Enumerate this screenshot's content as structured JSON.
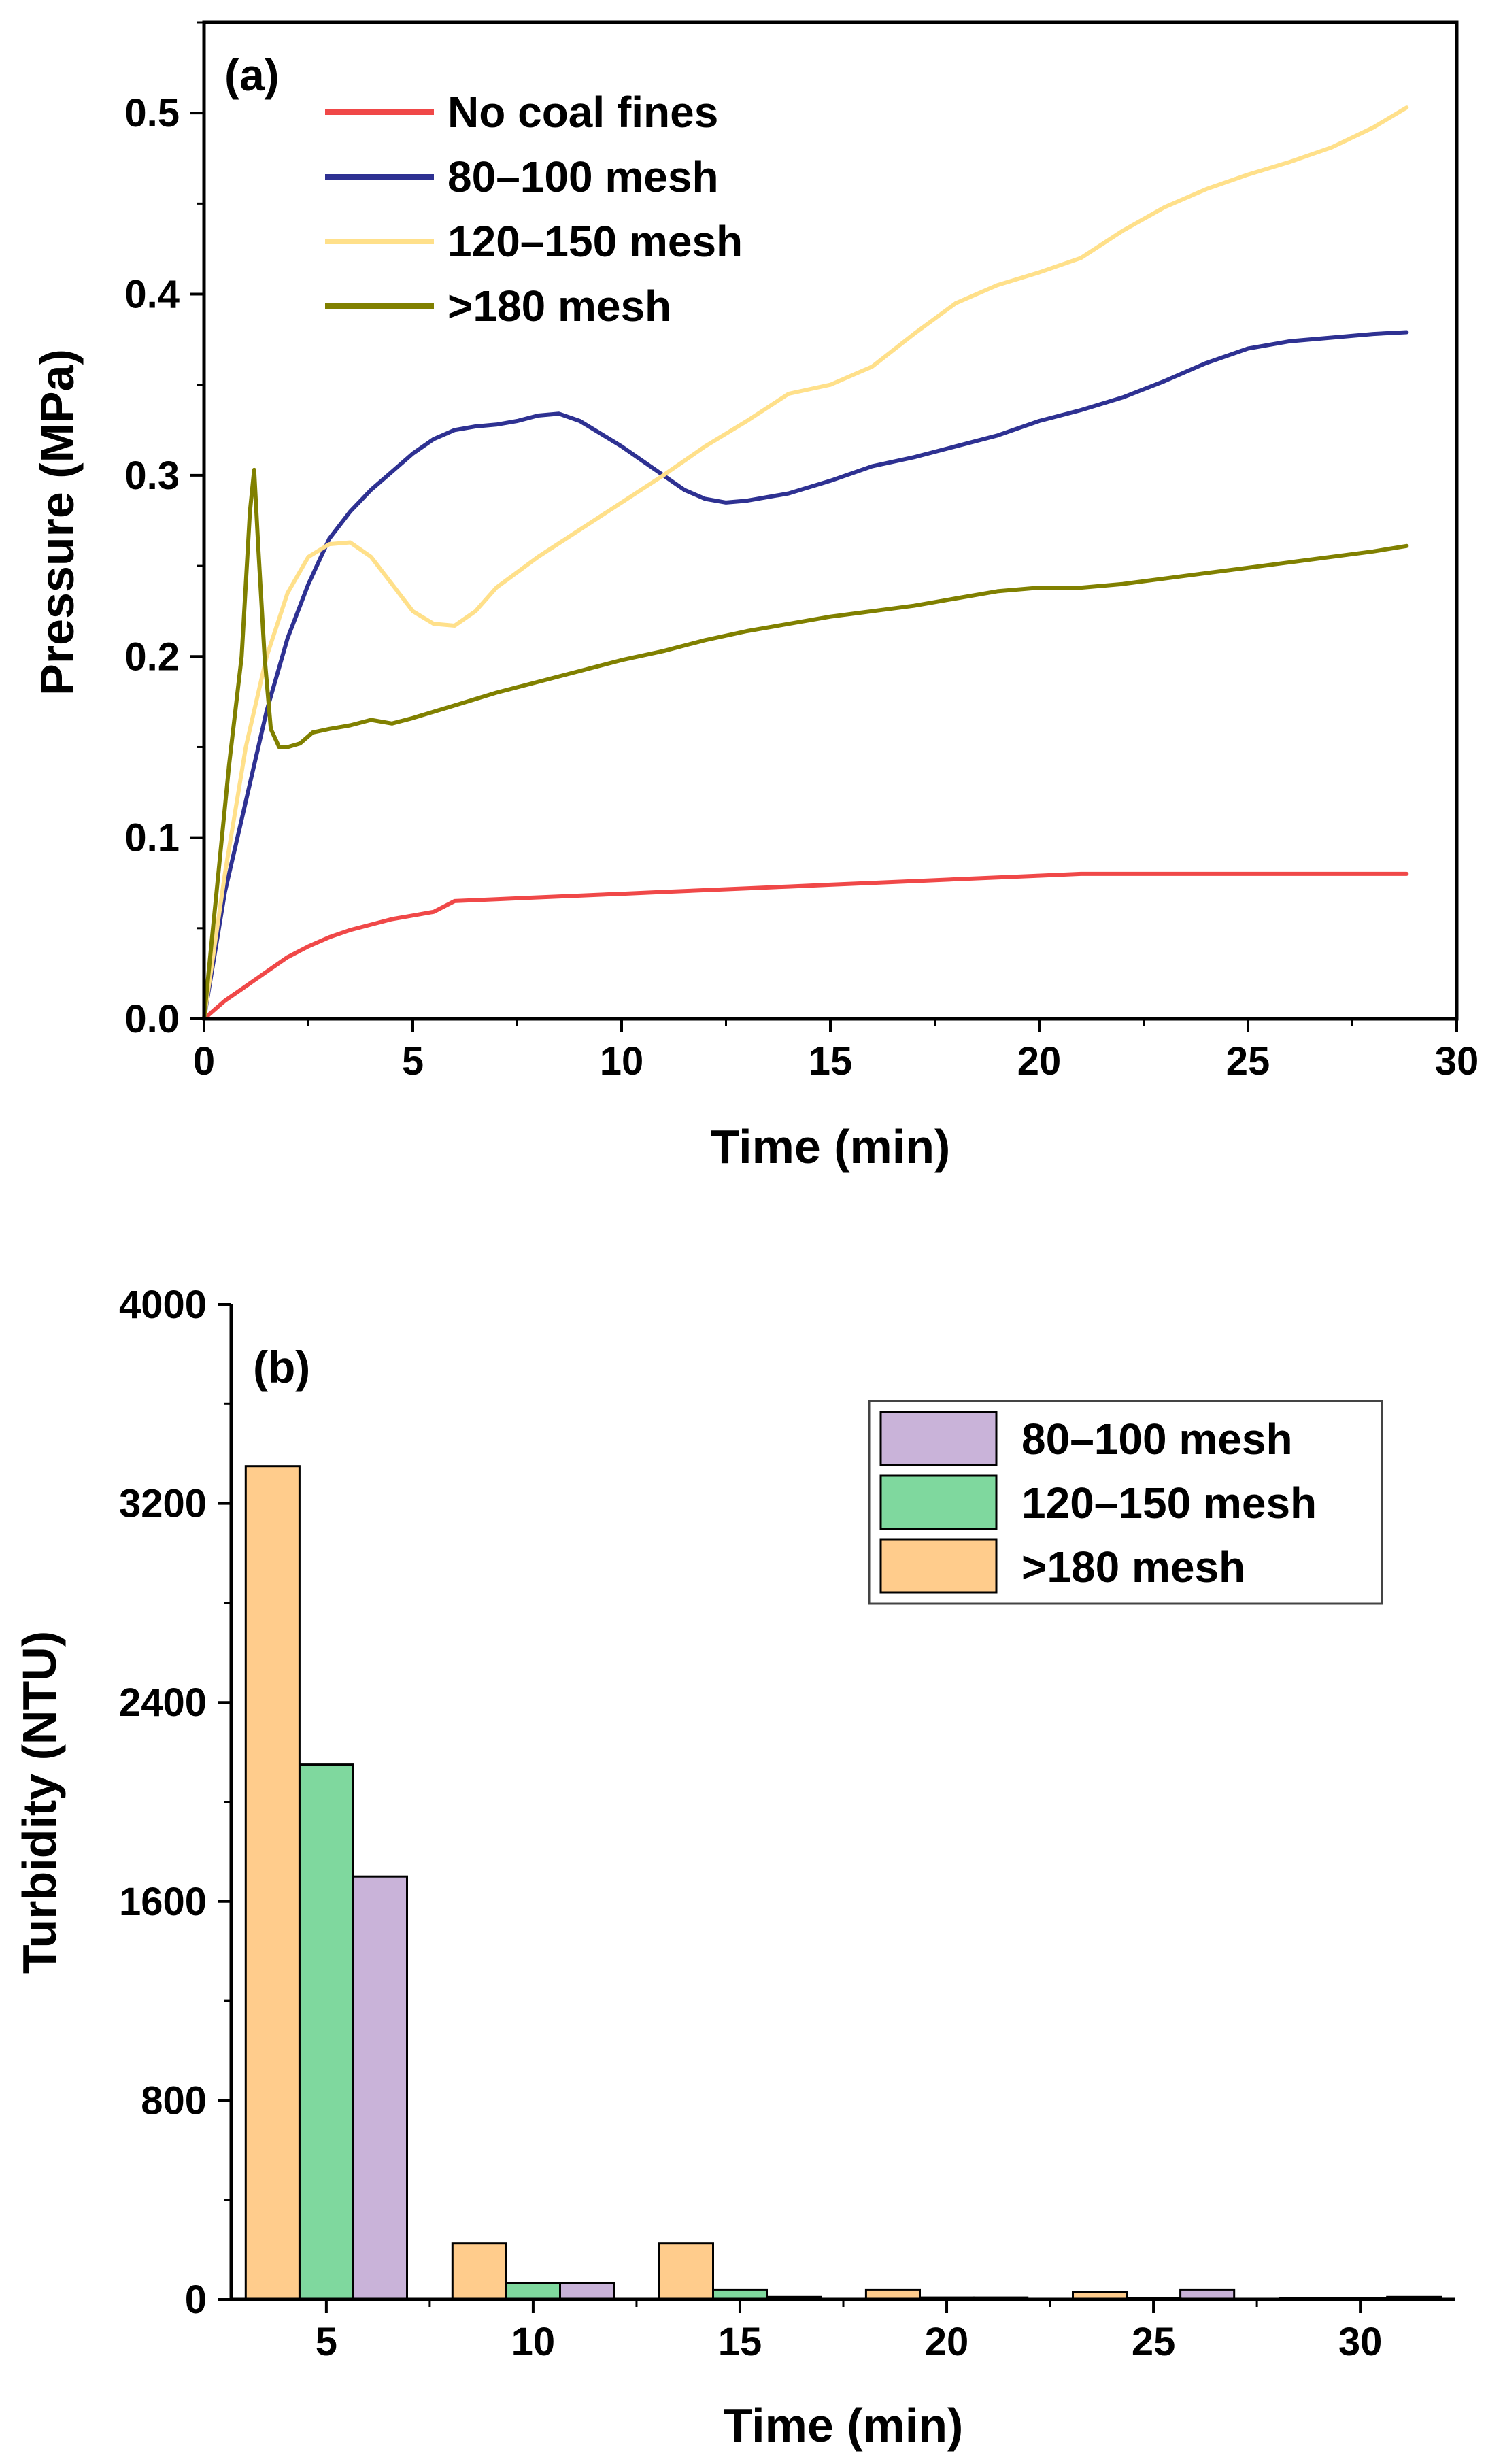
{
  "chart_data": [
    {
      "type": "line",
      "panel_label": "(a)",
      "xlabel": "Time (min)",
      "ylabel": "Pressure (MPa)",
      "xlim": [
        0,
        30
      ],
      "ylim": [
        0,
        0.55
      ],
      "xticks": [
        0,
        5,
        10,
        15,
        20,
        25,
        30
      ],
      "yticks": [
        0.0,
        0.1,
        0.2,
        0.3,
        0.4,
        0.5
      ],
      "xtick_labels": [
        "0",
        "5",
        "10",
        "15",
        "20",
        "25",
        "30"
      ],
      "ytick_labels": [
        "0.0",
        "0.1",
        "0.2",
        "0.3",
        "0.4",
        "0.5"
      ],
      "legend_position": "top-left",
      "series": [
        {
          "name": "No coal fines",
          "color": "#f04848",
          "x": [
            0,
            0.5,
            1,
            1.5,
            2,
            2.5,
            3,
            3.5,
            4,
            4.5,
            5,
            5.5,
            6,
            7,
            8,
            9,
            10,
            11,
            12,
            13,
            14,
            15,
            16,
            17,
            18,
            19,
            20,
            21,
            22,
            23,
            24,
            25,
            26,
            27,
            28,
            28.8
          ],
          "y": [
            0,
            0.01,
            0.018,
            0.026,
            0.034,
            0.04,
            0.045,
            0.049,
            0.052,
            0.055,
            0.057,
            0.059,
            0.065,
            0.066,
            0.067,
            0.068,
            0.069,
            0.07,
            0.071,
            0.072,
            0.073,
            0.074,
            0.075,
            0.076,
            0.077,
            0.078,
            0.079,
            0.08,
            0.08,
            0.08,
            0.08,
            0.08,
            0.08,
            0.08,
            0.08,
            0.08
          ]
        },
        {
          "name": "80–100 mesh",
          "color": "#2e3192",
          "x": [
            0,
            0.5,
            1,
            1.5,
            2,
            2.5,
            3,
            3.5,
            4,
            4.5,
            5,
            5.5,
            6,
            6.5,
            7,
            7.5,
            8,
            8.5,
            9,
            9.5,
            10,
            10.5,
            11,
            11.5,
            12,
            12.5,
            13,
            14,
            15,
            16,
            17,
            18,
            19,
            20,
            21,
            22,
            23,
            24,
            25,
            26,
            27,
            28,
            28.8
          ],
          "y": [
            0,
            0.07,
            0.12,
            0.17,
            0.21,
            0.24,
            0.265,
            0.28,
            0.292,
            0.302,
            0.312,
            0.32,
            0.325,
            0.327,
            0.328,
            0.33,
            0.333,
            0.334,
            0.33,
            0.323,
            0.316,
            0.308,
            0.3,
            0.292,
            0.287,
            0.285,
            0.286,
            0.29,
            0.297,
            0.305,
            0.31,
            0.316,
            0.322,
            0.33,
            0.336,
            0.343,
            0.352,
            0.362,
            0.37,
            0.374,
            0.376,
            0.378,
            0.379
          ]
        },
        {
          "name": "120–150 mesh",
          "color": "#ffe08a",
          "x": [
            0,
            0.5,
            1,
            1.5,
            2,
            2.5,
            3,
            3.5,
            4,
            4.5,
            5,
            5.5,
            6,
            6.5,
            7,
            8,
            9,
            10,
            11,
            12,
            13,
            14,
            15,
            16,
            17,
            18,
            19,
            20,
            21,
            22,
            23,
            24,
            25,
            26,
            27,
            28,
            28.8
          ],
          "y": [
            0,
            0.08,
            0.15,
            0.2,
            0.235,
            0.255,
            0.262,
            0.263,
            0.255,
            0.24,
            0.225,
            0.218,
            0.217,
            0.225,
            0.238,
            0.255,
            0.27,
            0.285,
            0.3,
            0.316,
            0.33,
            0.345,
            0.35,
            0.36,
            0.378,
            0.395,
            0.405,
            0.412,
            0.42,
            0.435,
            0.448,
            0.458,
            0.466,
            0.473,
            0.481,
            0.492,
            0.503
          ]
        },
        {
          "name": ">180 mesh",
          "color": "#808000",
          "x": [
            0,
            0.3,
            0.6,
            0.9,
            1.1,
            1.2,
            1.3,
            1.45,
            1.6,
            1.8,
            2,
            2.3,
            2.6,
            3,
            3.5,
            4,
            4.5,
            5,
            6,
            7,
            8,
            9,
            10,
            11,
            12,
            13,
            14,
            15,
            16,
            17,
            18,
            19,
            20,
            21,
            22,
            23,
            24,
            25,
            26,
            27,
            28,
            28.8
          ],
          "y": [
            0,
            0.07,
            0.14,
            0.2,
            0.28,
            0.303,
            0.26,
            0.2,
            0.16,
            0.15,
            0.15,
            0.152,
            0.158,
            0.16,
            0.162,
            0.165,
            0.163,
            0.166,
            0.173,
            0.18,
            0.186,
            0.192,
            0.198,
            0.203,
            0.209,
            0.214,
            0.218,
            0.222,
            0.225,
            0.228,
            0.232,
            0.236,
            0.238,
            0.238,
            0.24,
            0.243,
            0.246,
            0.249,
            0.252,
            0.255,
            0.258,
            0.261
          ]
        }
      ]
    },
    {
      "type": "bar",
      "panel_label": "(b)",
      "xlabel": "Time (min)",
      "ylabel": "Turbidity (NTU)",
      "xlim": [
        2.7,
        32.3
      ],
      "ylim": [
        0,
        4000
      ],
      "xticks": [
        5,
        10,
        15,
        20,
        25,
        30
      ],
      "yticks": [
        0,
        800,
        1600,
        2400,
        3200,
        4000
      ],
      "xtick_labels": [
        "5",
        "10",
        "15",
        "20",
        "25",
        "30"
      ],
      "ytick_labels": [
        "0",
        "800",
        "1600",
        "2400",
        "3200",
        "4000"
      ],
      "legend_position": "top-right",
      "bar_width": 1.3,
      "series": [
        {
          "name": "80–100 mesh",
          "color": "#c9b3d9",
          "x": [
            6.3,
            11.3,
            16.3,
            21.3,
            26.3,
            31.3
          ],
          "values": [
            1700,
            65,
            10,
            8,
            40,
            10
          ]
        },
        {
          "name": "120–150 mesh",
          "color": "#7fd89e",
          "x": [
            5,
            10,
            15,
            20,
            25,
            30
          ],
          "values": [
            2150,
            65,
            40,
            8,
            6,
            5
          ]
        },
        {
          "name": ">180 mesh",
          "color": "#ffcc8c",
          "x": [
            3.7,
            8.7,
            13.7,
            18.7,
            23.7,
            28.7
          ],
          "values": [
            3350,
            225,
            225,
            40,
            30,
            5
          ]
        }
      ],
      "legend_order": [
        0,
        1,
        2
      ]
    }
  ]
}
